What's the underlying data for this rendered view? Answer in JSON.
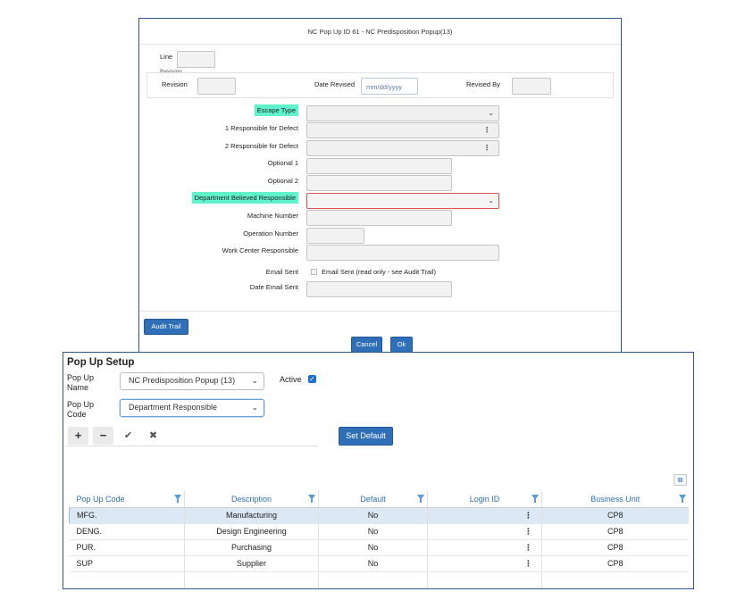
{
  "popup": {
    "title": "NC Pop Up ID 61 - NC Predisposition Popup(13)",
    "line_label": "Line",
    "revision_group_label": "Revision",
    "revision_label": "Revision",
    "date_revised_label": "Date Revised",
    "date_revised_placeholder": "mm/dd/yyyy",
    "revised_by_label": "Revised By",
    "fields": {
      "escape_type": "Escape Type",
      "responsible1": "1 Responsible for Defect",
      "responsible2": "2 Responsible for Defect",
      "optional1": "Optional 1",
      "optional2": "Optional 2",
      "department": "Department Believed Responsible",
      "machine": "Machine Number",
      "operation": "Operation Number",
      "work_center": "Work Center Responsible",
      "email_sent": "Email Sent",
      "email_sent_checkbox": "Email Sent (read only - see Audit Trail)",
      "date_email_sent": "Date Email Sent"
    },
    "buttons": {
      "audit_trail": "Audit Trail",
      "cancel": "Cancel",
      "ok": "Ok"
    }
  },
  "setup": {
    "heading": "Pop Up Setup",
    "name_label_1": "Pop Up",
    "name_label_2": "Name",
    "name_value": "NC Predisposition Popup (13)",
    "active_label": "Active",
    "active_checked": true,
    "code_label_1": "Pop Up",
    "code_label_2": "Code",
    "code_value": "Department Responsible",
    "toolbar": {
      "add": "+",
      "remove": "−",
      "confirm": "✔",
      "cancel": "✖"
    },
    "set_default": "Set Default",
    "grid": {
      "columns": [
        "Pop Up Code",
        "Description",
        "Default",
        "Login ID",
        "Business Unit"
      ],
      "rows": [
        {
          "code": "MFG.",
          "description": "Manufacturing",
          "default": "No",
          "login": "",
          "bu": "CP8"
        },
        {
          "code": "DENG.",
          "description": "Design Engineering",
          "default": "No",
          "login": "",
          "bu": "CP8"
        },
        {
          "code": "PUR.",
          "description": "Purchasing",
          "default": "No",
          "login": "",
          "bu": "CP8"
        },
        {
          "code": "SUP",
          "description": "Supplier",
          "default": "No",
          "login": "",
          "bu": "CP8"
        }
      ]
    }
  },
  "colors": {
    "accent": "#2e6fb7",
    "highlight": "#5ff2cc",
    "error_border": "#d9534f",
    "panel_border": "#2f5597"
  }
}
